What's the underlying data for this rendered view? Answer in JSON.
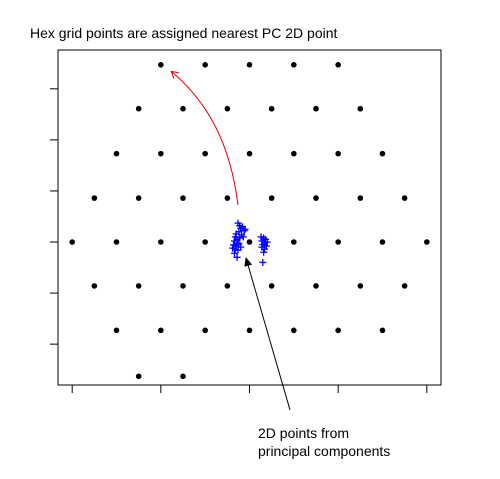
{
  "chart_data": {
    "type": "scatter",
    "title": "Hex grid points are assigned nearest PC 2D point",
    "annotation": [
      "2D points from",
      "principal components"
    ],
    "xlim": [
      -2.16,
      2.16
    ],
    "ylim": [
      -2.8,
      3.76
    ],
    "xticks": [
      -2,
      -1,
      0,
      1,
      2
    ],
    "yticks": [
      -2,
      -1,
      0,
      1,
      2,
      3
    ],
    "series": [
      {
        "color": "#000000",
        "marker": "dot",
        "x": [
          -1,
          -0.5,
          0,
          0.5,
          1,
          -1.25,
          -0.75,
          -0.25,
          0.25,
          0.75,
          1.25,
          -1.5,
          -1,
          -0.5,
          0,
          0.5,
          1,
          1.5,
          -1.75,
          -1.25,
          -0.75,
          -0.25,
          0.25,
          0.75,
          1.25,
          1.75,
          -2,
          -1.5,
          -1,
          -0.5,
          0,
          0.5,
          1,
          1.5,
          2,
          -1.75,
          -1.25,
          -0.75,
          -0.25,
          0.25,
          0.75,
          1.25,
          1.75,
          -1.5,
          -1,
          -0.5,
          0,
          0.5,
          1,
          1.5,
          -1.25,
          -0.75
        ],
        "y": [
          3.47,
          3.47,
          3.47,
          3.47,
          3.47,
          2.61,
          2.61,
          2.61,
          2.61,
          2.61,
          2.61,
          1.73,
          1.73,
          1.73,
          1.73,
          1.73,
          1.73,
          1.73,
          0.86,
          0.86,
          0.86,
          0.86,
          0.86,
          0.86,
          0.86,
          0.86,
          0,
          0,
          0,
          0,
          0,
          0,
          0,
          0,
          0,
          -0.86,
          -0.86,
          -0.86,
          -0.86,
          -0.86,
          -0.86,
          -0.86,
          -0.86,
          -1.73,
          -1.73,
          -1.73,
          -1.73,
          -1.73,
          -1.73,
          -1.73,
          -2.63,
          -2.63
        ]
      },
      {
        "color": "#0000ff",
        "marker": "plus",
        "x": [
          -0.13,
          -0.1,
          -0.08,
          -0.12,
          -0.15,
          -0.09,
          -0.11,
          -0.14,
          -0.17,
          -0.13,
          -0.18,
          -0.15,
          -0.12,
          -0.19,
          -0.16,
          -0.13,
          -0.17,
          -0.14,
          -0.06,
          -0.07,
          -0.1,
          -0.11,
          -0.05,
          -0.16,
          0.13,
          0.16,
          0.18,
          0.14,
          0.17,
          0.15,
          0.19,
          0.14,
          0.17,
          0.16,
          0.15,
          0.2
        ],
        "y": [
          0.37,
          0.27,
          0.3,
          0.2,
          0.16,
          0.14,
          0.08,
          0.05,
          0.02,
          -0.02,
          -0.06,
          -0.08,
          -0.04,
          -0.12,
          -0.14,
          -0.16,
          -0.22,
          -0.3,
          0.22,
          0.1,
          -0.1,
          0.32,
          0.25,
          0.1,
          0.1,
          0.08,
          0.05,
          0.02,
          -0.02,
          -0.05,
          -0.08,
          -0.1,
          -0.14,
          -0.2,
          -0.4,
          0.0
        ]
      }
    ]
  }
}
